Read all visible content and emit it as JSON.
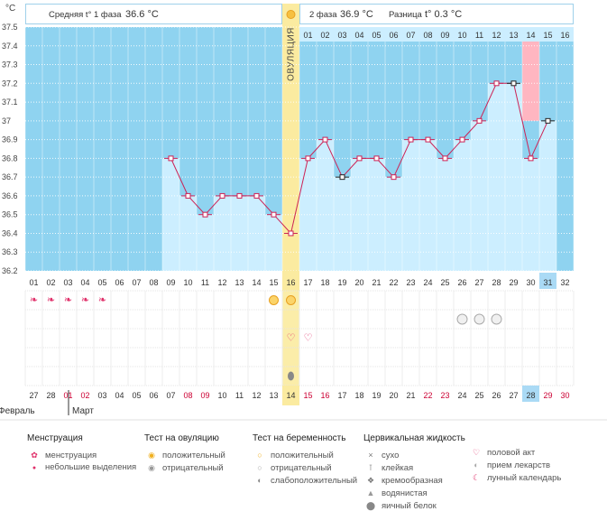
{
  "unit": "°C",
  "header": {
    "phase1_label": "Средняя t° 1 фаза",
    "phase1_value": "36.6 °C",
    "phase2_label": "2 фаза",
    "phase2_value": "36.9 °C",
    "diff_label": "Разница",
    "diff_value": "t° 0.3 °C"
  },
  "ovulation_label": "ОВУЛЯЦИЯ",
  "chart_data": {
    "type": "line",
    "ylim": [
      36.2,
      37.5
    ],
    "y_ticks": [
      "36.2",
      "36.3",
      "36.4",
      "36.5",
      "36.6",
      "36.7",
      "36.8",
      "36.9",
      "37",
      "37.1",
      "37.2",
      "37.3",
      "37.4",
      "37.5"
    ],
    "cycle_days": [
      "01",
      "02",
      "03",
      "04",
      "05",
      "06",
      "07",
      "08",
      "09",
      "10",
      "11",
      "12",
      "13",
      "14",
      "15",
      "16",
      "17",
      "18",
      "19",
      "20",
      "21",
      "22",
      "23",
      "24",
      "25",
      "26",
      "27",
      "28",
      "29",
      "30",
      "31",
      "32"
    ],
    "phase2_days": [
      "01",
      "02",
      "03",
      "04",
      "05",
      "06",
      "07",
      "08",
      "09",
      "10",
      "11",
      "12",
      "13",
      "14",
      "15",
      "16"
    ],
    "dates": [
      "27",
      "28",
      "01",
      "02",
      "03",
      "04",
      "05",
      "06",
      "07",
      "08",
      "09",
      "10",
      "11",
      "12",
      "13",
      "14",
      "15",
      "16",
      "17",
      "18",
      "19",
      "20",
      "21",
      "22",
      "23",
      "24",
      "25",
      "26",
      "27",
      "28",
      "29",
      "30"
    ],
    "month_labels": [
      "Февраль",
      "Март"
    ],
    "series": [
      {
        "x": [
          9,
          10,
          11,
          12,
          13,
          14,
          15,
          16,
          17,
          18,
          19,
          20,
          21,
          22,
          23,
          24,
          25,
          26,
          27,
          28,
          29,
          30,
          31
        ],
        "values": [
          36.8,
          36.6,
          36.5,
          36.6,
          36.6,
          36.6,
          36.5,
          36.4,
          36.8,
          36.9,
          36.7,
          36.8,
          36.8,
          36.7,
          36.9,
          36.9,
          36.8,
          36.9,
          37.0,
          37.2,
          37.2,
          36.8,
          37.0
        ]
      }
    ],
    "ovulation_day": 16,
    "current_day": 31,
    "highlight_phase2_day": "15",
    "grid": true
  },
  "markers": {
    "menstruation_days": [
      1,
      2,
      3,
      4,
      5
    ],
    "ovulation_test_days": [
      15,
      16
    ],
    "pregnancy_test_days": [
      26,
      27,
      28
    ],
    "intercourse_days": [
      16,
      17
    ],
    "fluid_days": [
      16
    ]
  },
  "colors": {
    "grid_bg": "#8fd3f0",
    "bar_fill": "#cceeff",
    "line": "#cc2255",
    "ovulation": "#fbeba0",
    "highlight": "#ffb6c1",
    "today": "#aadaf5",
    "weekend_date": "#cc0033"
  },
  "legend": {
    "menstruation": {
      "title": "Менструация",
      "items": [
        "менструация",
        "небольшие выделения"
      ]
    },
    "ovulation_test": {
      "title": "Тест на овуляцию",
      "items": [
        "положительный",
        "отрицательный"
      ]
    },
    "pregnancy_test": {
      "title": "Тест на беременность",
      "items": [
        "положительный",
        "отрицательный",
        "слабоположительный"
      ]
    },
    "cervical": {
      "title": "Цервикальная жидкость",
      "items": [
        "сухо",
        "клейкая",
        "кремообразная",
        "водянистая",
        "яичный белок"
      ]
    },
    "other": {
      "items": [
        "половой акт",
        "прием лекарств",
        "лунный календарь"
      ]
    }
  }
}
